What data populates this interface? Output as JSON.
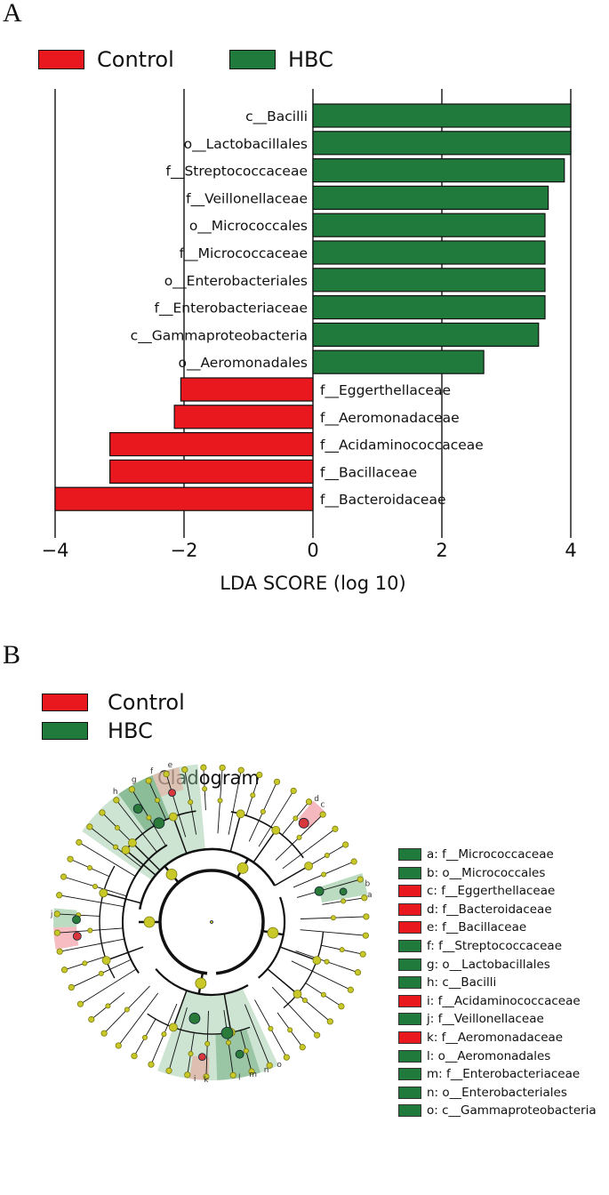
{
  "panel_a_label": "A",
  "panel_b_label": "B",
  "colors": {
    "control": "#e8181e",
    "hbc": "#1f7a3c"
  },
  "legend": [
    {
      "name": "Control",
      "color": "#e8181e"
    },
    {
      "name": "HBC",
      "color": "#1f7a3c"
    }
  ],
  "chart_data": [
    {
      "type": "bar",
      "orientation": "horizontal",
      "xlabel": "LDA SCORE (log 10)",
      "xlim": [
        -4,
        4
      ],
      "xticks": [
        "−4",
        "−2",
        "0",
        "2",
        "4"
      ],
      "grid": "vertical lines at -4, -2, 0, 2, 4",
      "legend_position": "top",
      "bars": [
        {
          "label": "c__Bacilli",
          "value": 4.0,
          "group": "HBC"
        },
        {
          "label": "o__Lactobacillales",
          "value": 4.0,
          "group": "HBC"
        },
        {
          "label": "f__Streptococcaceae",
          "value": 3.9,
          "group": "HBC"
        },
        {
          "label": "f__Veillonellaceae",
          "value": 3.65,
          "group": "HBC"
        },
        {
          "label": "o__Micrococcales",
          "value": 3.6,
          "group": "HBC"
        },
        {
          "label": "f__Micrococcaceae",
          "value": 3.6,
          "group": "HBC"
        },
        {
          "label": "o__Enterobacteriales",
          "value": 3.6,
          "group": "HBC"
        },
        {
          "label": "f__Enterobacteriaceae",
          "value": 3.6,
          "group": "HBC"
        },
        {
          "label": "c__Gammaproteobacteria",
          "value": 3.5,
          "group": "HBC"
        },
        {
          "label": "o__Aeromonadales",
          "value": 2.65,
          "group": "HBC"
        },
        {
          "label": "f__Eggerthellaceae",
          "value": -2.05,
          "group": "Control"
        },
        {
          "label": "f__Aeromonadaceae",
          "value": -2.15,
          "group": "Control"
        },
        {
          "label": "f__Acidaminococcaceae",
          "value": -3.15,
          "group": "Control"
        },
        {
          "label": "f__Bacillaceae",
          "value": -3.15,
          "group": "Control"
        },
        {
          "label": "f__Bacteroidaceae",
          "value": -4.0,
          "group": "Control"
        }
      ]
    }
  ],
  "cladogram": {
    "title": "Cladogram",
    "key": [
      {
        "text": "a: f__Micrococcaceae",
        "group": "HBC"
      },
      {
        "text": "b: o__Micrococcales",
        "group": "HBC"
      },
      {
        "text": "c: f__Eggerthellaceae",
        "group": "Control"
      },
      {
        "text": "d: f__Bacteroidaceae",
        "group": "Control"
      },
      {
        "text": "e: f__Bacillaceae",
        "group": "Control"
      },
      {
        "text": "f: f__Streptococcaceae",
        "group": "HBC"
      },
      {
        "text": "g: o__Lactobacillales",
        "group": "HBC"
      },
      {
        "text": "h: c__Bacilli",
        "group": "HBC"
      },
      {
        "text": "i: f__Acidaminococcaceae",
        "group": "Control"
      },
      {
        "text": "j: f__Veillonellaceae",
        "group": "HBC"
      },
      {
        "text": "k: f__Aeromonadaceae",
        "group": "Control"
      },
      {
        "text": "l: o__Aeromonadales",
        "group": "HBC"
      },
      {
        "text": "m: f__Enterobacteriaceae",
        "group": "HBC"
      },
      {
        "text": "n: o__Enterobacteriales",
        "group": "HBC"
      },
      {
        "text": "o: c__Gammaproteobacteria",
        "group": "HBC"
      }
    ],
    "node_letters": [
      "a",
      "b",
      "c",
      "d",
      "e",
      "f",
      "g",
      "h",
      "i",
      "j",
      "k",
      "l",
      "m",
      "n",
      "o"
    ]
  }
}
